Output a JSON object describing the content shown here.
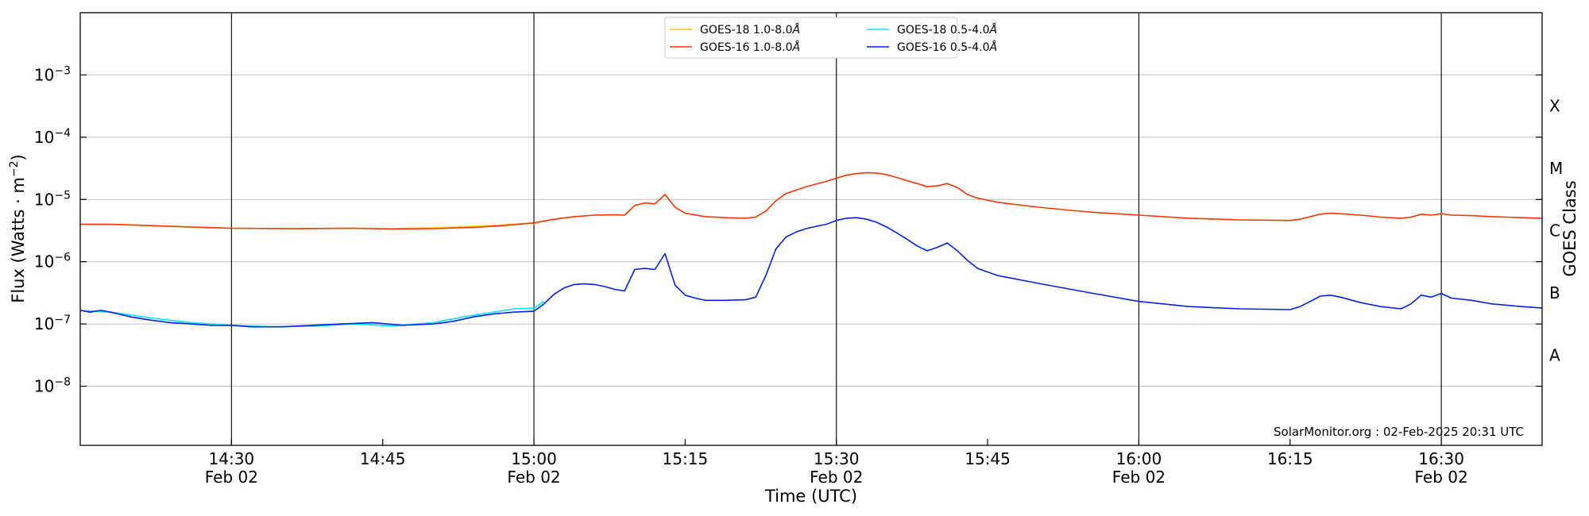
{
  "chart_data": {
    "type": "line",
    "xlabel": "Time (UTC)",
    "ylabel_main": "Flux (Watts · m",
    "ylabel_sup": "−2",
    "ylabel_end": ")",
    "right_label": "GOES Class",
    "x_range_minutes": [
      855,
      1000
    ],
    "ylim_log10": [
      -8.95,
      -2.0
    ],
    "yscale": "log",
    "grid": "horizontal",
    "x_ticks": [
      {
        "m": 870,
        "time": "14:30",
        "date": "Feb 02"
      },
      {
        "m": 885,
        "time": "14:45",
        "date": ""
      },
      {
        "m": 900,
        "time": "15:00",
        "date": "Feb 02"
      },
      {
        "m": 915,
        "time": "15:15",
        "date": ""
      },
      {
        "m": 930,
        "time": "15:30",
        "date": "Feb 02"
      },
      {
        "m": 945,
        "time": "15:45",
        "date": ""
      },
      {
        "m": 960,
        "time": "16:00",
        "date": "Feb 02"
      },
      {
        "m": 975,
        "time": "16:15",
        "date": ""
      },
      {
        "m": 990,
        "time": "16:30",
        "date": "Feb 02"
      }
    ],
    "y_ticks": [
      {
        "exp": -8,
        "label": "10",
        "sup": "−8"
      },
      {
        "exp": -7,
        "label": "10",
        "sup": "−7"
      },
      {
        "exp": -6,
        "label": "10",
        "sup": "−6"
      },
      {
        "exp": -5,
        "label": "10",
        "sup": "−5"
      },
      {
        "exp": -4,
        "label": "10",
        "sup": "−4"
      },
      {
        "exp": -3,
        "label": "10",
        "sup": "−3"
      }
    ],
    "goes_classes": [
      {
        "label": "A",
        "exp": -7.5
      },
      {
        "label": "B",
        "exp": -6.5
      },
      {
        "label": "C",
        "exp": -5.5
      },
      {
        "label": "M",
        "exp": -4.5
      },
      {
        "label": "X",
        "exp": -3.5
      }
    ],
    "legend_placement": "top-center",
    "watermark": "SolarMonitor.org : 02-Feb-2025 20:31 UTC",
    "series": [
      {
        "name": "GOES-18 1.0-8.0Å",
        "legend_main": "GOES-18 1.0-8.0",
        "color": "#ffcc00",
        "points": [
          [
            855,
            4e-06
          ],
          [
            858,
            4e-06
          ],
          [
            862,
            3.8e-06
          ],
          [
            866,
            3.6e-06
          ],
          [
            870,
            3.45e-06
          ],
          [
            876,
            3.4e-06
          ],
          [
            882,
            3.45e-06
          ],
          [
            886,
            3.4e-06
          ],
          [
            890,
            3.5e-06
          ],
          [
            894,
            3.7e-06
          ],
          [
            897,
            3.9e-06
          ],
          [
            900,
            4.2e-06
          ]
        ]
      },
      {
        "name": "GOES-16 1.0-8.0Å",
        "legend_main": "GOES-16 1.0-8.0",
        "color": "#ff3300",
        "points": [
          [
            855,
            4e-06
          ],
          [
            858,
            4e-06
          ],
          [
            862,
            3.8e-06
          ],
          [
            866,
            3.6e-06
          ],
          [
            870,
            3.45e-06
          ],
          [
            876,
            3.4e-06
          ],
          [
            882,
            3.45e-06
          ],
          [
            886,
            3.35e-06
          ],
          [
            890,
            3.4e-06
          ],
          [
            894,
            3.55e-06
          ],
          [
            897,
            3.8e-06
          ],
          [
            900,
            4.2e-06
          ],
          [
            902,
            4.8e-06
          ],
          [
            904,
            5.3e-06
          ],
          [
            906,
            5.6e-06
          ],
          [
            908,
            5.7e-06
          ],
          [
            909,
            5.6e-06
          ],
          [
            910,
            8e-06
          ],
          [
            911,
            8.8e-06
          ],
          [
            912,
            8.5e-06
          ],
          [
            913,
            1.2e-05
          ],
          [
            914,
            7.5e-06
          ],
          [
            915,
            6e-06
          ],
          [
            917,
            5.3e-06
          ],
          [
            919,
            5.1e-06
          ],
          [
            921,
            5e-06
          ],
          [
            922,
            5.2e-06
          ],
          [
            923,
            6.5e-06
          ],
          [
            924,
            9.5e-06
          ],
          [
            925,
            1.25e-05
          ],
          [
            927,
            1.6e-05
          ],
          [
            929,
            1.95e-05
          ],
          [
            930,
            2.2e-05
          ],
          [
            931,
            2.45e-05
          ],
          [
            932,
            2.6e-05
          ],
          [
            933,
            2.7e-05
          ],
          [
            934,
            2.65e-05
          ],
          [
            935,
            2.5e-05
          ],
          [
            936,
            2.25e-05
          ],
          [
            937,
            2e-05
          ],
          [
            938,
            1.8e-05
          ],
          [
            939,
            1.6e-05
          ],
          [
            940,
            1.65e-05
          ],
          [
            941,
            1.8e-05
          ],
          [
            942,
            1.55e-05
          ],
          [
            943,
            1.2e-05
          ],
          [
            944,
            1.05e-05
          ],
          [
            946,
            9e-06
          ],
          [
            950,
            7.5e-06
          ],
          [
            955,
            6.3e-06
          ],
          [
            960,
            5.6e-06
          ],
          [
            965,
            5e-06
          ],
          [
            970,
            4.7e-06
          ],
          [
            975,
            4.6e-06
          ],
          [
            976,
            4.8e-06
          ],
          [
            977,
            5.3e-06
          ],
          [
            978,
            5.8e-06
          ],
          [
            979,
            6e-06
          ],
          [
            980,
            5.9e-06
          ],
          [
            982,
            5.6e-06
          ],
          [
            984,
            5.2e-06
          ],
          [
            986,
            5e-06
          ],
          [
            987,
            5.2e-06
          ],
          [
            988,
            5.8e-06
          ],
          [
            989,
            5.6e-06
          ],
          [
            990,
            5.9e-06
          ],
          [
            991,
            5.6e-06
          ],
          [
            993,
            5.5e-06
          ],
          [
            995,
            5.3e-06
          ],
          [
            998,
            5.1e-06
          ],
          [
            1000,
            5e-06
          ]
        ]
      },
      {
        "name": "GOES-18 0.5-4.0Å",
        "legend_main": "GOES-18 0.5-4.0",
        "color": "#00e5ff",
        "points": [
          [
            855,
            1.65e-07
          ],
          [
            858,
            1.55e-07
          ],
          [
            862,
            1.25e-07
          ],
          [
            866,
            1.05e-07
          ],
          [
            870,
            9.5e-08
          ],
          [
            874,
            9e-08
          ],
          [
            878,
            9.2e-08
          ],
          [
            882,
            1e-07
          ],
          [
            886,
            9.3e-08
          ],
          [
            890,
            1.05e-07
          ],
          [
            893,
            1.3e-07
          ],
          [
            896,
            1.55e-07
          ],
          [
            898,
            1.75e-07
          ],
          [
            900,
            1.8e-07
          ],
          [
            901,
            2.3e-07
          ]
        ]
      },
      {
        "name": "GOES-16 0.5-4.0Å",
        "legend_main": "GOES-16 0.5-4.0",
        "color": "#0022ee",
        "points": [
          [
            855,
            1.65e-07
          ],
          [
            856,
            1.55e-07
          ],
          [
            857,
            1.65e-07
          ],
          [
            858,
            1.55e-07
          ],
          [
            860,
            1.3e-07
          ],
          [
            862,
            1.15e-07
          ],
          [
            864,
            1.05e-07
          ],
          [
            866,
            1e-07
          ],
          [
            868,
            9.5e-08
          ],
          [
            870,
            9.5e-08
          ],
          [
            872,
            9e-08
          ],
          [
            875,
            9e-08
          ],
          [
            878,
            9.5e-08
          ],
          [
            881,
            1e-07
          ],
          [
            884,
            1.05e-07
          ],
          [
            887,
            9.5e-08
          ],
          [
            890,
            1e-07
          ],
          [
            892,
            1.1e-07
          ],
          [
            894,
            1.3e-07
          ],
          [
            896,
            1.45e-07
          ],
          [
            898,
            1.55e-07
          ],
          [
            900,
            1.6e-07
          ],
          [
            901,
            2.1e-07
          ],
          [
            902,
            3e-07
          ],
          [
            903,
            3.8e-07
          ],
          [
            904,
            4.3e-07
          ],
          [
            905,
            4.4e-07
          ],
          [
            906,
            4.3e-07
          ],
          [
            907,
            4e-07
          ],
          [
            908,
            3.6e-07
          ],
          [
            909,
            3.4e-07
          ],
          [
            910,
            7.5e-07
          ],
          [
            911,
            7.8e-07
          ],
          [
            912,
            7.5e-07
          ],
          [
            913,
            1.35e-06
          ],
          [
            914,
            4.2e-07
          ],
          [
            915,
            2.9e-07
          ],
          [
            916,
            2.6e-07
          ],
          [
            917,
            2.4e-07
          ],
          [
            919,
            2.4e-07
          ],
          [
            921,
            2.45e-07
          ],
          [
            922,
            2.7e-07
          ],
          [
            923,
            6e-07
          ],
          [
            924,
            1.6e-06
          ],
          [
            925,
            2.5e-06
          ],
          [
            926,
            3e-06
          ],
          [
            927,
            3.4e-06
          ],
          [
            928,
            3.7e-06
          ],
          [
            929,
            4e-06
          ],
          [
            930,
            4.6e-06
          ],
          [
            931,
            5e-06
          ],
          [
            932,
            5.1e-06
          ],
          [
            933,
            4.8e-06
          ],
          [
            934,
            4.3e-06
          ],
          [
            935,
            3.6e-06
          ],
          [
            936,
            2.9e-06
          ],
          [
            937,
            2.3e-06
          ],
          [
            938,
            1.8e-06
          ],
          [
            939,
            1.5e-06
          ],
          [
            940,
            1.7e-06
          ],
          [
            941,
            2e-06
          ],
          [
            942,
            1.5e-06
          ],
          [
            943,
            1.05e-06
          ],
          [
            944,
            7.8e-07
          ],
          [
            946,
            6e-07
          ],
          [
            950,
            4.5e-07
          ],
          [
            955,
            3.2e-07
          ],
          [
            960,
            2.3e-07
          ],
          [
            965,
            1.9e-07
          ],
          [
            970,
            1.75e-07
          ],
          [
            975,
            1.7e-07
          ],
          [
            976,
            1.9e-07
          ],
          [
            977,
            2.3e-07
          ],
          [
            978,
            2.8e-07
          ],
          [
            979,
            2.9e-07
          ],
          [
            980,
            2.7e-07
          ],
          [
            982,
            2.2e-07
          ],
          [
            984,
            1.9e-07
          ],
          [
            986,
            1.75e-07
          ],
          [
            987,
            2.1e-07
          ],
          [
            988,
            2.9e-07
          ],
          [
            989,
            2.7e-07
          ],
          [
            990,
            3.1e-07
          ],
          [
            991,
            2.6e-07
          ],
          [
            993,
            2.4e-07
          ],
          [
            995,
            2.1e-07
          ],
          [
            998,
            1.9e-07
          ],
          [
            1000,
            1.8e-07
          ]
        ]
      }
    ]
  }
}
